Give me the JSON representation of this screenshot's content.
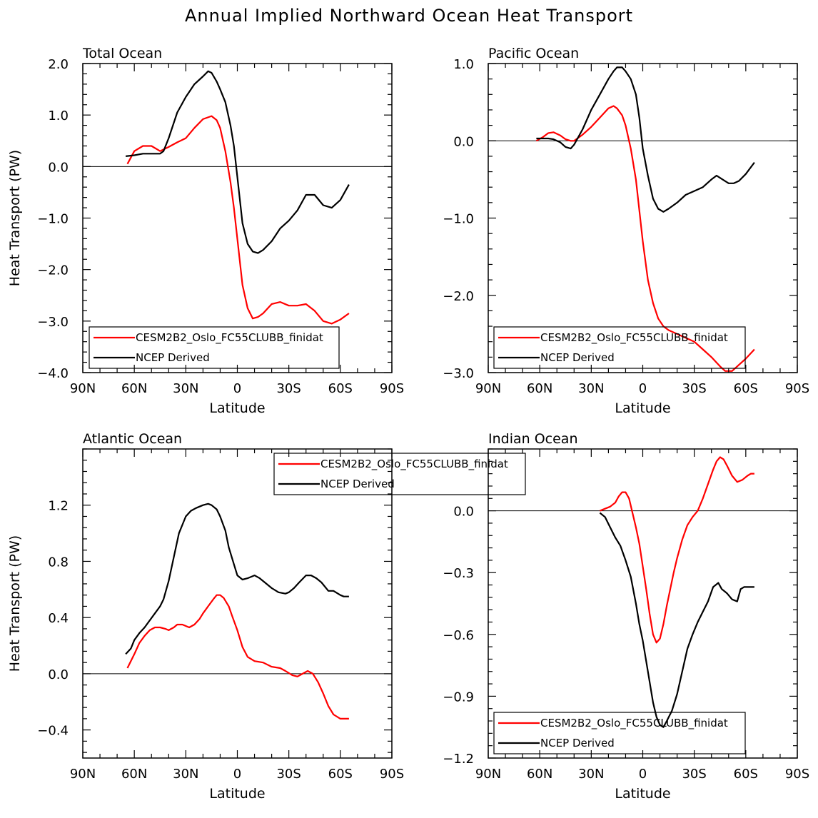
{
  "title": "Annual Implied Northward Ocean Heat Transport",
  "colors": {
    "model": "#ff0000",
    "obs": "#000000",
    "frame": "#000000"
  },
  "chart_data": [
    {
      "type": "line",
      "title": "Total Ocean",
      "xlabel": "Latitude",
      "ylabel": "Heat Transport (PW)",
      "xlim": [
        90,
        -90
      ],
      "ylim": [
        -4.0,
        2.0
      ],
      "xticks": [
        90,
        60,
        30,
        0,
        -30,
        -60,
        -90
      ],
      "xtick_labels": [
        "90N",
        "60N",
        "30N",
        "0",
        "30S",
        "60S",
        "90S"
      ],
      "yticks": [
        -4.0,
        -3.0,
        -2.0,
        -1.0,
        0.0,
        1.0,
        2.0
      ],
      "ytick_labels": [
        "−4.0",
        "−3.0",
        "−2.0",
        "−1.0",
        "0.0",
        "1.0",
        "2.0"
      ],
      "legend": [
        "CESM2B2_Oslo_FC55CLUBB_finidat",
        "NCEP Derived"
      ],
      "legend_position": "bottom-left",
      "series": [
        {
          "name": "CESM2B2_Oslo_FC55CLUBB_finidat",
          "color": "#ff0000",
          "x": [
            64,
            60,
            55,
            50,
            45,
            40,
            35,
            30,
            25,
            20,
            15,
            12,
            10,
            7,
            4,
            2,
            0,
            -3,
            -6,
            -9,
            -12,
            -15,
            -20,
            -25,
            -30,
            -35,
            -40,
            -45,
            -50,
            -55,
            -60,
            -65
          ],
          "y": [
            0.05,
            0.3,
            0.4,
            0.4,
            0.3,
            0.38,
            0.47,
            0.55,
            0.75,
            0.92,
            0.98,
            0.9,
            0.75,
            0.3,
            -0.3,
            -0.8,
            -1.4,
            -2.3,
            -2.75,
            -2.95,
            -2.92,
            -2.85,
            -2.67,
            -2.63,
            -2.7,
            -2.7,
            -2.67,
            -2.8,
            -3.0,
            -3.05,
            -2.97,
            -2.85
          ]
        },
        {
          "name": "NCEP Derived",
          "color": "#000000",
          "x": [
            65,
            60,
            55,
            50,
            45,
            43,
            40,
            35,
            30,
            25,
            20,
            17,
            15,
            12,
            10,
            7,
            4,
            2,
            0,
            -3,
            -6,
            -9,
            -12,
            -15,
            -20,
            -25,
            -30,
            -35,
            -40,
            -45,
            -50,
            -55,
            -60,
            -65
          ],
          "y": [
            0.2,
            0.22,
            0.25,
            0.25,
            0.25,
            0.3,
            0.55,
            1.05,
            1.35,
            1.6,
            1.75,
            1.85,
            1.82,
            1.65,
            1.5,
            1.25,
            0.8,
            0.4,
            -0.2,
            -1.1,
            -1.5,
            -1.65,
            -1.68,
            -1.62,
            -1.45,
            -1.2,
            -1.05,
            -0.85,
            -0.55,
            -0.55,
            -0.75,
            -0.8,
            -0.65,
            -0.35
          ]
        }
      ]
    },
    {
      "type": "line",
      "title": "Pacific Ocean",
      "xlabel": "Latitude",
      "ylabel": "",
      "xlim": [
        90,
        -90
      ],
      "ylim": [
        -3.0,
        1.0
      ],
      "xticks": [
        90,
        60,
        30,
        0,
        -30,
        -60,
        -90
      ],
      "xtick_labels": [
        "90N",
        "60N",
        "30N",
        "0",
        "30S",
        "60S",
        "90S"
      ],
      "yticks": [
        -3.0,
        -2.0,
        -1.0,
        0.0,
        1.0
      ],
      "ytick_labels": [
        "−3.0",
        "−2.0",
        "−1.0",
        "0.0",
        "1.0"
      ],
      "legend": [
        "CESM2B2_Oslo_FC55CLUBB_finidat",
        "NCEP Derived"
      ],
      "legend_position": "bottom-left",
      "series": [
        {
          "name": "CESM2B2_Oslo_FC55CLUBB_finidat",
          "color": "#ff0000",
          "x": [
            62,
            58,
            55,
            52,
            48,
            45,
            42,
            40,
            35,
            30,
            25,
            20,
            17,
            15,
            12,
            10,
            7,
            4,
            2,
            0,
            -3,
            -6,
            -9,
            -12,
            -15,
            -20,
            -25,
            -30,
            -35,
            -40,
            -45,
            -48,
            -52,
            -55,
            -60,
            -65
          ],
          "y": [
            0.0,
            0.05,
            0.1,
            0.11,
            0.07,
            0.02,
            0.0,
            0.0,
            0.08,
            0.18,
            0.3,
            0.42,
            0.45,
            0.42,
            0.33,
            0.2,
            -0.1,
            -0.5,
            -0.9,
            -1.3,
            -1.8,
            -2.1,
            -2.3,
            -2.4,
            -2.45,
            -2.5,
            -2.55,
            -2.6,
            -2.7,
            -2.8,
            -2.92,
            -2.98,
            -2.98,
            -2.92,
            -2.82,
            -2.7
          ]
        },
        {
          "name": "NCEP Derived",
          "color": "#000000",
          "x": [
            62,
            58,
            55,
            52,
            48,
            45,
            42,
            40,
            35,
            30,
            25,
            20,
            17,
            15,
            12,
            10,
            7,
            4,
            2,
            0,
            -3,
            -6,
            -9,
            -12,
            -15,
            -20,
            -25,
            -30,
            -35,
            -40,
            -43,
            -45,
            -50,
            -53,
            -56,
            -60,
            -65
          ],
          "y": [
            0.03,
            0.03,
            0.03,
            0.02,
            -0.02,
            -0.08,
            -0.1,
            -0.05,
            0.15,
            0.4,
            0.6,
            0.8,
            0.9,
            0.95,
            0.95,
            0.9,
            0.8,
            0.6,
            0.3,
            -0.1,
            -0.45,
            -0.75,
            -0.88,
            -0.92,
            -0.88,
            -0.8,
            -0.7,
            -0.65,
            -0.6,
            -0.5,
            -0.45,
            -0.48,
            -0.55,
            -0.55,
            -0.52,
            -0.43,
            -0.28
          ]
        }
      ]
    },
    {
      "type": "line",
      "title": "Atlantic Ocean",
      "xlabel": "Latitude",
      "ylabel": "Heat Transport (PW)",
      "xlim": [
        90,
        -90
      ],
      "ylim": [
        -0.6,
        1.6
      ],
      "xticks": [
        90,
        60,
        30,
        0,
        -30,
        -60,
        -90
      ],
      "xtick_labels": [
        "90N",
        "60N",
        "30N",
        "0",
        "30S",
        "60S",
        "90S"
      ],
      "yticks": [
        -0.4,
        0.0,
        0.4,
        0.8,
        1.2
      ],
      "ytick_labels": [
        "−0.4",
        "0.0",
        "0.4",
        "0.8",
        "1.2"
      ],
      "legend": [
        "CESM2B2_Oslo_FC55CLUBB_finidat",
        "NCEP Derived"
      ],
      "legend_position": "top-center",
      "series": [
        {
          "name": "CESM2B2_Oslo_FC55CLUBB_finidat",
          "color": "#ff0000",
          "x": [
            64,
            60,
            57,
            54,
            51,
            48,
            45,
            42,
            40,
            37,
            35,
            32,
            30,
            28,
            25,
            22,
            20,
            17,
            14,
            12,
            10,
            8,
            5,
            3,
            0,
            -3,
            -6,
            -10,
            -15,
            -20,
            -25,
            -28,
            -32,
            -35,
            -38,
            -41,
            -44,
            -47,
            -50,
            -53,
            -56,
            -60,
            -63,
            -65
          ],
          "y": [
            0.04,
            0.14,
            0.22,
            0.27,
            0.31,
            0.33,
            0.33,
            0.32,
            0.31,
            0.33,
            0.35,
            0.35,
            0.34,
            0.33,
            0.35,
            0.39,
            0.43,
            0.48,
            0.53,
            0.56,
            0.56,
            0.54,
            0.48,
            0.41,
            0.31,
            0.19,
            0.12,
            0.09,
            0.08,
            0.05,
            0.04,
            0.02,
            -0.01,
            -0.02,
            0.0,
            0.02,
            0.0,
            -0.06,
            -0.14,
            -0.23,
            -0.29,
            -0.32,
            -0.32,
            -0.32
          ]
        },
        {
          "name": "NCEP Derived",
          "color": "#000000",
          "x": [
            65,
            62,
            60,
            57,
            54,
            51,
            48,
            45,
            43,
            40,
            37,
            34,
            30,
            27,
            24,
            20,
            17,
            15,
            12,
            10,
            7,
            5,
            2,
            0,
            -3,
            -6,
            -10,
            -13,
            -16,
            -20,
            -24,
            -28,
            -30,
            -33,
            -36,
            -40,
            -43,
            -46,
            -49,
            -53,
            -56,
            -60,
            -62,
            -65
          ],
          "y": [
            0.14,
            0.18,
            0.24,
            0.29,
            0.33,
            0.38,
            0.43,
            0.48,
            0.53,
            0.66,
            0.83,
            1.0,
            1.12,
            1.16,
            1.18,
            1.2,
            1.21,
            1.2,
            1.17,
            1.12,
            1.02,
            0.9,
            0.78,
            0.7,
            0.67,
            0.68,
            0.7,
            0.68,
            0.65,
            0.61,
            0.58,
            0.57,
            0.58,
            0.61,
            0.65,
            0.7,
            0.7,
            0.68,
            0.65,
            0.59,
            0.59,
            0.56,
            0.55,
            0.55
          ]
        }
      ]
    },
    {
      "type": "line",
      "title": "Indian Ocean",
      "xlabel": "Latitude",
      "ylabel": "",
      "xlim": [
        90,
        -90
      ],
      "ylim": [
        -1.2,
        0.3
      ],
      "xticks": [
        90,
        60,
        30,
        0,
        -30,
        -60,
        -90
      ],
      "xtick_labels": [
        "90N",
        "60N",
        "30N",
        "0",
        "30S",
        "60S",
        "90S"
      ],
      "yticks": [
        -1.2,
        -0.9,
        -0.6,
        -0.3,
        0.0
      ],
      "ytick_labels": [
        "−1.2",
        "−0.9",
        "−0.6",
        "−0.3",
        "0.0"
      ],
      "legend": [
        "CESM2B2_Oslo_FC55CLUBB_finidat",
        "NCEP Derived"
      ],
      "legend_position": "bottom-left",
      "series": [
        {
          "name": "CESM2B2_Oslo_FC55CLUBB_finidat",
          "color": "#ff0000",
          "x": [
            25,
            22,
            19,
            16,
            14,
            12,
            10,
            8,
            6,
            4,
            2,
            0,
            -2,
            -4,
            -6,
            -8,
            -10,
            -12,
            -14,
            -16,
            -18,
            -20,
            -23,
            -26,
            -29,
            -32,
            -35,
            -38,
            -41,
            -43,
            -45,
            -47,
            -49,
            -52,
            -55,
            -58,
            -61,
            -63,
            -65
          ],
          "y": [
            0.0,
            0.01,
            0.02,
            0.04,
            0.07,
            0.09,
            0.09,
            0.06,
            -0.01,
            -0.08,
            -0.16,
            -0.27,
            -0.38,
            -0.5,
            -0.6,
            -0.64,
            -0.62,
            -0.55,
            -0.46,
            -0.38,
            -0.3,
            -0.23,
            -0.14,
            -0.07,
            -0.03,
            0.0,
            0.06,
            0.13,
            0.2,
            0.24,
            0.26,
            0.25,
            0.22,
            0.17,
            0.14,
            0.15,
            0.17,
            0.18,
            0.18
          ]
        },
        {
          "name": "NCEP Derived",
          "color": "#000000",
          "x": [
            25,
            22,
            19,
            16,
            13,
            10,
            7,
            4,
            2,
            0,
            -2,
            -4,
            -6,
            -8,
            -10,
            -12,
            -14,
            -17,
            -20,
            -23,
            -26,
            -29,
            -32,
            -35,
            -38,
            -41,
            -44,
            -46,
            -49,
            -52,
            -55,
            -57,
            -59,
            -62,
            -65
          ],
          "y": [
            -0.01,
            -0.03,
            -0.08,
            -0.13,
            -0.17,
            -0.24,
            -0.32,
            -0.45,
            -0.55,
            -0.63,
            -0.73,
            -0.83,
            -0.93,
            -1.0,
            -1.04,
            -1.05,
            -1.02,
            -0.97,
            -0.89,
            -0.78,
            -0.67,
            -0.6,
            -0.54,
            -0.49,
            -0.44,
            -0.37,
            -0.35,
            -0.38,
            -0.4,
            -0.43,
            -0.44,
            -0.38,
            -0.37,
            -0.37,
            -0.37
          ]
        }
      ]
    }
  ]
}
